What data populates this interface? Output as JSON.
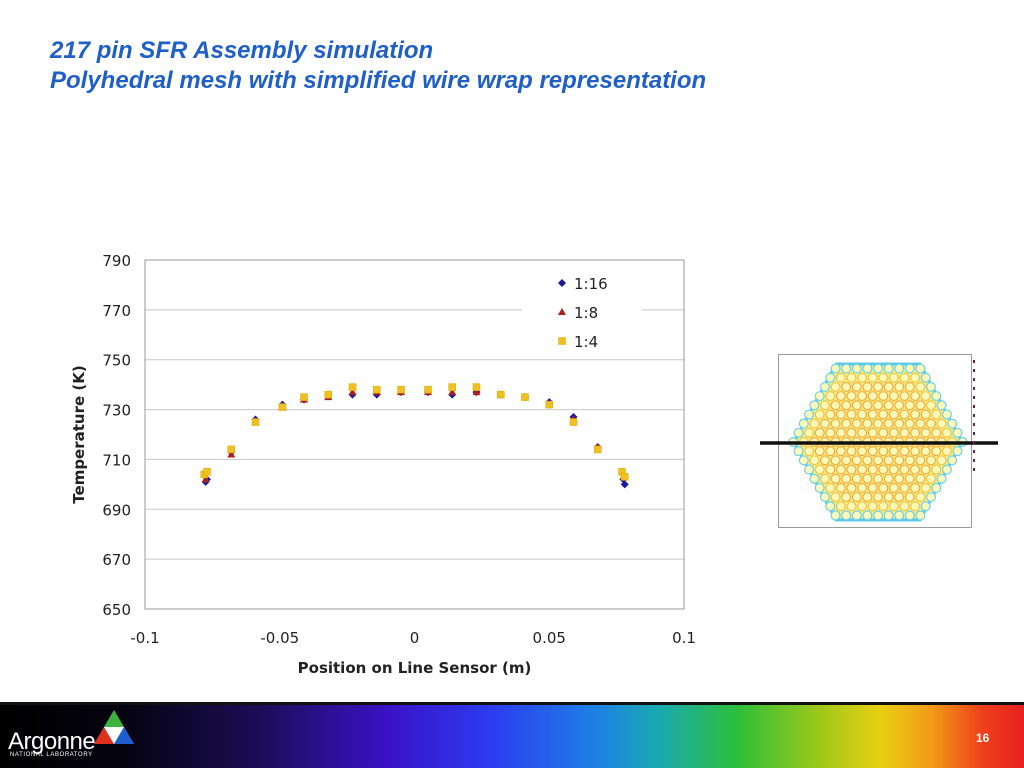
{
  "slide": {
    "title_line1": "217 pin SFR Assembly simulation",
    "title_line2": "Polyhedral mesh with simplified wire wrap representation",
    "page_number": "16"
  },
  "footer": {
    "logo_text": "Argonne",
    "logo_subtext": "NATIONAL LABORATORY"
  },
  "colors": {
    "title": "#1f5fc7",
    "series_1_16": "#1a1a9a",
    "series_1_8": "#a82020",
    "series_1_4": "#f0c020"
  },
  "chart_data": {
    "type": "scatter",
    "xlabel": "Position on Line Sensor (m)",
    "ylabel": "Temperature (K)",
    "xlim": [
      -0.1,
      0.1
    ],
    "ylim": [
      650,
      790
    ],
    "xticks": [
      "-0.1",
      "-0.05",
      "0",
      "0.05",
      "0.1"
    ],
    "yticks": [
      "650",
      "670",
      "690",
      "710",
      "730",
      "750",
      "770",
      "790"
    ],
    "grid": "horizontal",
    "legend": "top-right",
    "series": [
      {
        "name": "1:16",
        "marker": "diamond",
        "points": [
          [
            -0.0775,
            701
          ],
          [
            -0.077,
            702
          ],
          [
            -0.068,
            713
          ],
          [
            -0.059,
            726
          ],
          [
            -0.049,
            732
          ],
          [
            -0.041,
            734
          ],
          [
            -0.032,
            736
          ],
          [
            -0.023,
            736
          ],
          [
            -0.014,
            736
          ],
          [
            -0.005,
            737
          ],
          [
            0.005,
            737
          ],
          [
            0.014,
            736
          ],
          [
            0.023,
            737
          ],
          [
            0.032,
            736
          ],
          [
            0.041,
            735
          ],
          [
            0.05,
            733
          ],
          [
            0.059,
            727
          ],
          [
            0.068,
            715
          ],
          [
            0.0775,
            702
          ],
          [
            0.078,
            700
          ]
        ]
      },
      {
        "name": "1:8",
        "marker": "triangle",
        "points": [
          [
            -0.0775,
            702
          ],
          [
            -0.068,
            712
          ],
          [
            -0.059,
            725
          ],
          [
            -0.049,
            731
          ],
          [
            -0.041,
            734
          ],
          [
            -0.032,
            735
          ],
          [
            -0.023,
            737
          ],
          [
            -0.014,
            737
          ],
          [
            -0.005,
            737
          ],
          [
            0.005,
            737
          ],
          [
            0.014,
            737
          ],
          [
            0.023,
            737
          ],
          [
            0.032,
            736
          ],
          [
            0.041,
            735
          ],
          [
            0.05,
            732
          ],
          [
            0.059,
            726
          ],
          [
            0.068,
            715
          ],
          [
            0.0775,
            703
          ]
        ]
      },
      {
        "name": "1:4",
        "marker": "square",
        "points": [
          [
            -0.078,
            704
          ],
          [
            -0.077,
            705
          ],
          [
            -0.068,
            714
          ],
          [
            -0.059,
            725
          ],
          [
            -0.049,
            731
          ],
          [
            -0.041,
            735
          ],
          [
            -0.032,
            736
          ],
          [
            -0.023,
            739
          ],
          [
            -0.014,
            738
          ],
          [
            -0.005,
            738
          ],
          [
            0.005,
            738
          ],
          [
            0.014,
            739
          ],
          [
            0.023,
            739
          ],
          [
            0.032,
            736
          ],
          [
            0.041,
            735
          ],
          [
            0.05,
            732
          ],
          [
            0.059,
            725
          ],
          [
            0.068,
            714
          ],
          [
            0.077,
            705
          ],
          [
            0.078,
            703
          ]
        ]
      }
    ]
  },
  "hex_graphic": {
    "pin_count": 217
  }
}
